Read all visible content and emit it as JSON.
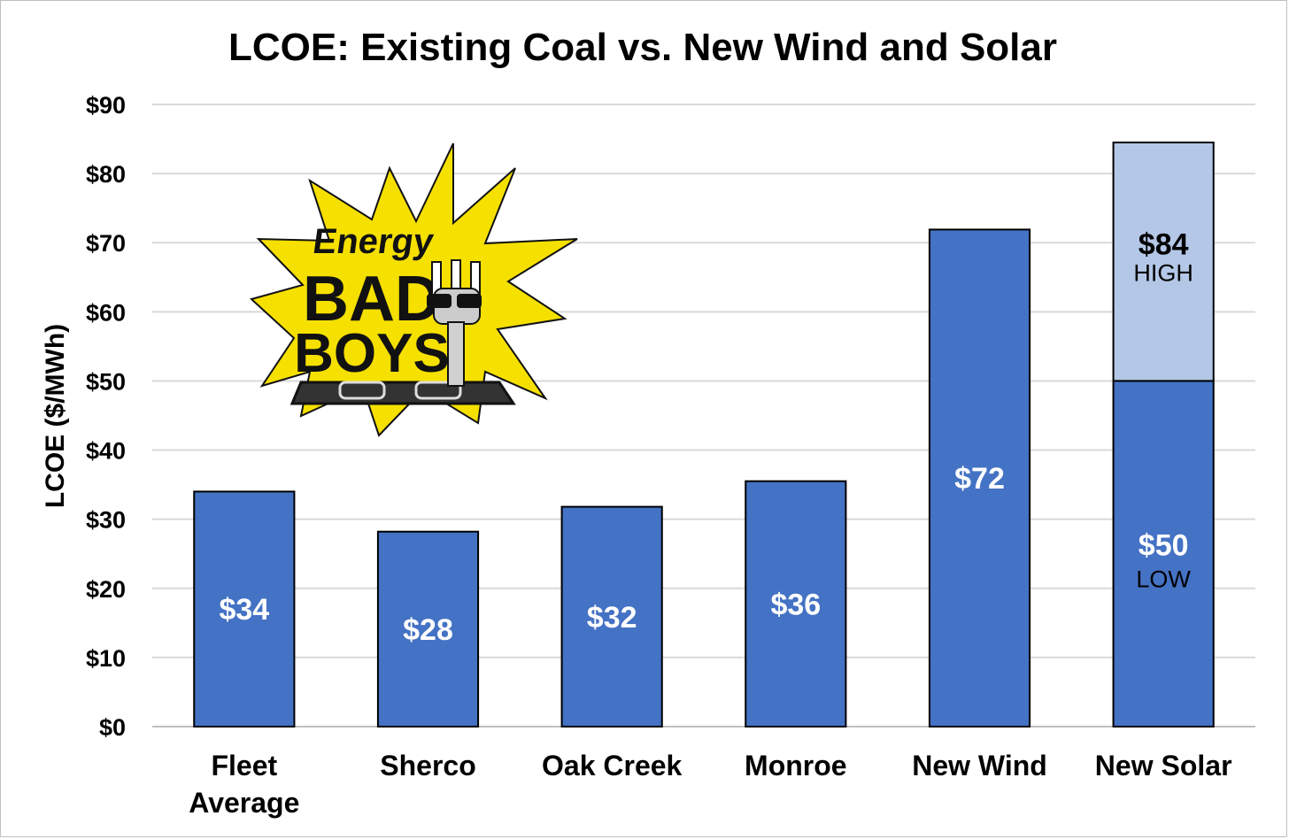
{
  "chart_data": {
    "type": "bar",
    "title": "LCOE: Existing Coal vs. New Wind and Solar",
    "ylabel": "LCOE ($/MWh)",
    "xlabel": "",
    "ylim": [
      0,
      90
    ],
    "ytick_step": 10,
    "ytick_labels": [
      "$0",
      "$10",
      "$20",
      "$30",
      "$40",
      "$50",
      "$60",
      "$70",
      "$80",
      "$90"
    ],
    "grid": true,
    "categories": [
      [
        "Fleet",
        "Average"
      ],
      [
        "Sherco"
      ],
      [
        "Oak Creek"
      ],
      [
        "Monroe"
      ],
      [
        "New Wind"
      ],
      [
        "New Solar"
      ]
    ],
    "values": [
      34.0,
      28.2,
      31.8,
      35.5,
      71.9,
      50.0
    ],
    "value_labels": [
      "$34",
      "$28",
      "$32",
      "$36",
      "$72",
      "$50"
    ],
    "stacked_high": {
      "category_index": 5,
      "low": 50.0,
      "high": 84.5,
      "high_label": "$84",
      "high_sublabel": "HIGH",
      "low_sublabel": "LOW"
    },
    "colors": {
      "bar": "#4472c4",
      "high_segment": "#b4c7e7",
      "bar_outline": "#000000",
      "grid": "#d9d9d9",
      "value_label_on_bar": "#ffffff",
      "value_label_on_light": "#000000"
    }
  },
  "logo": {
    "word_top": "Energy",
    "word_middle": "BAD",
    "word_bottom": "BOYS",
    "colors": {
      "burst": "#f5e000",
      "outline": "#111111"
    },
    "icons": [
      "starburst-icon",
      "plug-with-sunglasses-icon",
      "outlet-icon"
    ]
  }
}
